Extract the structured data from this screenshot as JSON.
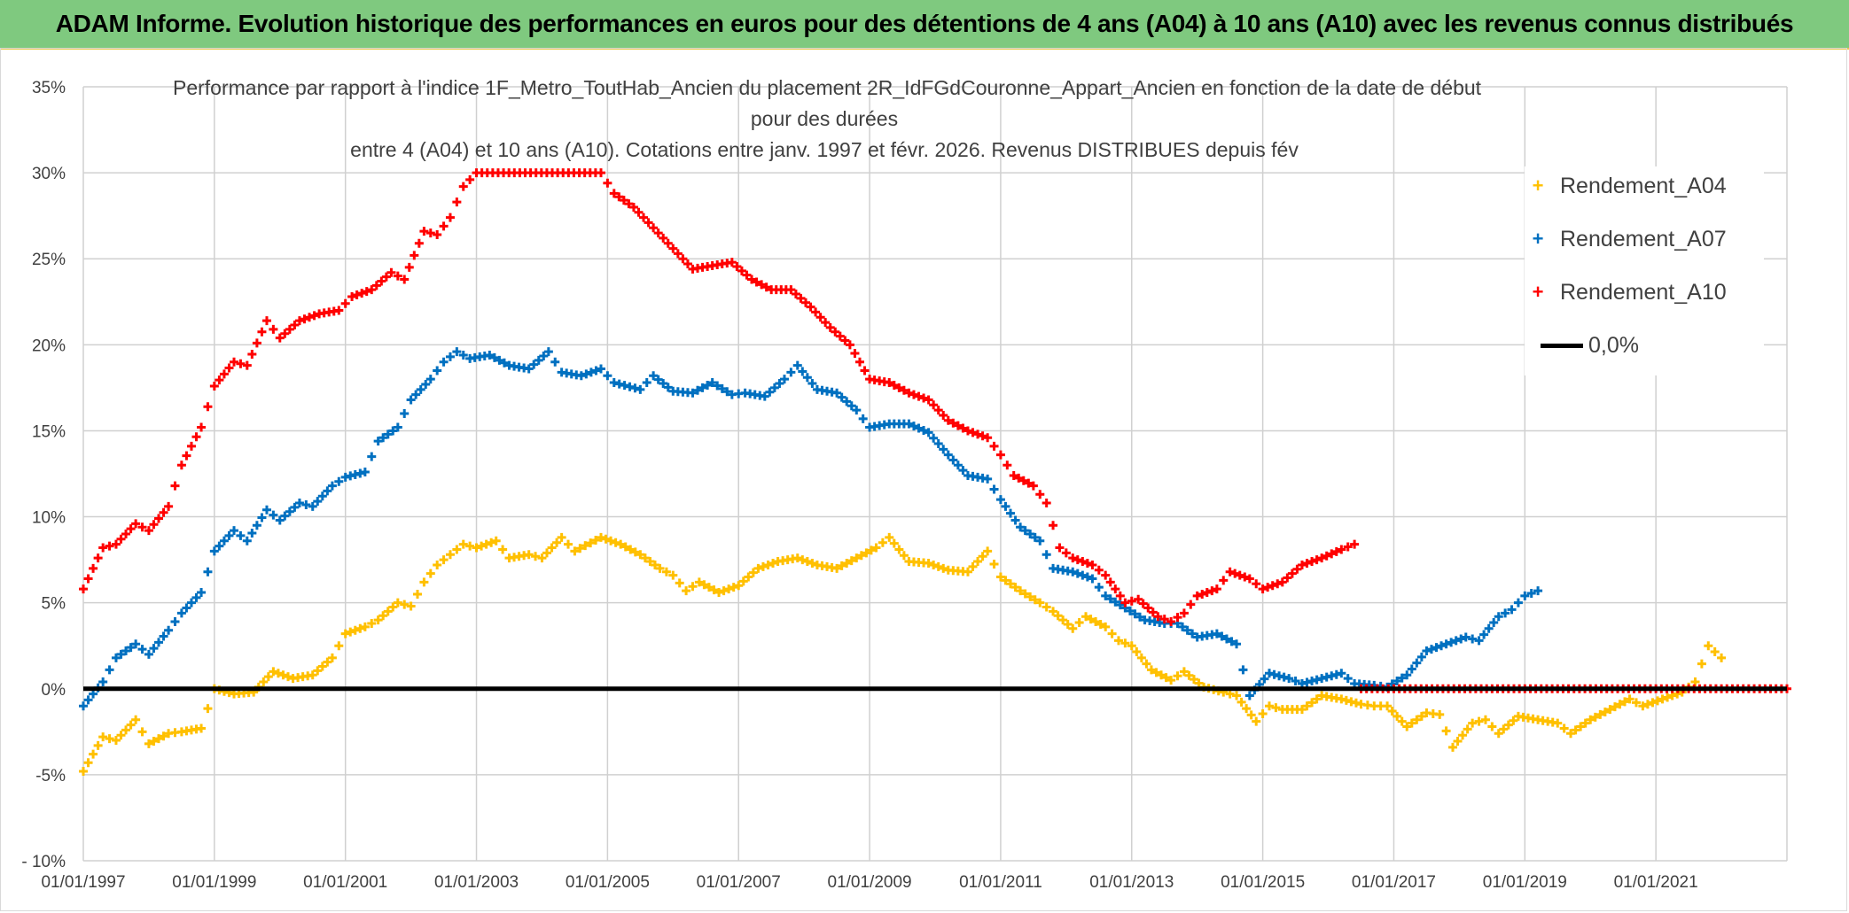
{
  "header": {
    "banner": "ADAM Informe. Evolution historique des performances en euros pour des détentions de 4 ans (A04) à 10 ans (A10) avec les revenus connus distribués"
  },
  "chart_data": {
    "type": "line",
    "title_lines": [
      "Performance par rapport à l'indice 1F_Metro_ToutHab_Ancien  du placement 2R_IdFGdCouronne_Appart_Ancien en fonction de la date de début",
      "pour des durées",
      "entre 4 (A04) et 10 ans (A10). Cotations entre janv. 1997 et févr. 2026. Revenus DISTRIBUES depuis fév"
    ],
    "xlabel": "",
    "ylabel": "",
    "x_ticks": [
      "01/01/1997",
      "01/01/1999",
      "01/01/2001",
      "01/01/2003",
      "01/01/2005",
      "01/01/2007",
      "01/01/2009",
      "01/01/2011",
      "01/01/2013",
      "01/01/2015",
      "01/01/2017",
      "01/01/2019",
      "01/01/2021"
    ],
    "y_ticks": [
      "35%",
      "30%",
      "25%",
      "20%",
      "15%",
      "10%",
      "5%",
      "0%",
      "-5%",
      "- 10%"
    ],
    "ylim": [
      -10,
      35
    ],
    "xlim": [
      1997.0,
      2023.0
    ],
    "clip_at_max": 30,
    "grid": "horizontal and vertical",
    "legend_position": "right",
    "series": [
      {
        "name": "Rendement_A04",
        "color": "#FFC000",
        "marker": "plus",
        "points": [
          [
            1997.0,
            -4.8
          ],
          [
            1997.3,
            -2.8
          ],
          [
            1997.5,
            -3.0
          ],
          [
            1997.8,
            -1.8
          ],
          [
            1998.0,
            -3.2
          ],
          [
            1998.3,
            -2.6
          ],
          [
            1998.5,
            -2.5
          ],
          [
            1998.8,
            -2.3
          ],
          [
            1999.0,
            0.0
          ],
          [
            1999.3,
            -0.3
          ],
          [
            1999.6,
            -0.2
          ],
          [
            1999.9,
            1.0
          ],
          [
            2000.2,
            0.6
          ],
          [
            2000.5,
            0.8
          ],
          [
            2000.8,
            1.8
          ],
          [
            2001.0,
            3.2
          ],
          [
            2001.3,
            3.6
          ],
          [
            2001.5,
            4.0
          ],
          [
            2001.8,
            5.0
          ],
          [
            2002.0,
            4.8
          ],
          [
            2002.2,
            6.2
          ],
          [
            2002.4,
            7.2
          ],
          [
            2002.6,
            7.8
          ],
          [
            2002.8,
            8.4
          ],
          [
            2003.0,
            8.2
          ],
          [
            2003.3,
            8.6
          ],
          [
            2003.5,
            7.6
          ],
          [
            2003.8,
            7.8
          ],
          [
            2004.0,
            7.6
          ],
          [
            2004.3,
            8.8
          ],
          [
            2004.5,
            8.0
          ],
          [
            2004.9,
            8.8
          ],
          [
            2005.2,
            8.4
          ],
          [
            2005.5,
            7.8
          ],
          [
            2005.8,
            7.0
          ],
          [
            2006.0,
            6.6
          ],
          [
            2006.2,
            5.7
          ],
          [
            2006.4,
            6.2
          ],
          [
            2006.7,
            5.6
          ],
          [
            2007.0,
            6.0
          ],
          [
            2007.3,
            7.0
          ],
          [
            2007.6,
            7.4
          ],
          [
            2007.9,
            7.6
          ],
          [
            2008.2,
            7.2
          ],
          [
            2008.5,
            7.0
          ],
          [
            2008.8,
            7.6
          ],
          [
            2009.1,
            8.2
          ],
          [
            2009.3,
            8.8
          ],
          [
            2009.6,
            7.4
          ],
          [
            2009.9,
            7.3
          ],
          [
            2010.2,
            6.9
          ],
          [
            2010.5,
            6.8
          ],
          [
            2010.8,
            8.0
          ],
          [
            2011.0,
            6.5
          ],
          [
            2011.3,
            5.7
          ],
          [
            2011.6,
            5.0
          ],
          [
            2011.8,
            4.5
          ],
          [
            2012.1,
            3.5
          ],
          [
            2012.3,
            4.2
          ],
          [
            2012.6,
            3.6
          ],
          [
            2012.8,
            2.8
          ],
          [
            2013.0,
            2.5
          ],
          [
            2013.3,
            1.1
          ],
          [
            2013.6,
            0.5
          ],
          [
            2013.8,
            1.0
          ],
          [
            2014.1,
            0.1
          ],
          [
            2014.4,
            -0.2
          ],
          [
            2014.6,
            -0.4
          ],
          [
            2014.9,
            -1.9
          ],
          [
            2015.1,
            -1.0
          ],
          [
            2015.3,
            -1.2
          ],
          [
            2015.6,
            -1.2
          ],
          [
            2015.9,
            -0.4
          ],
          [
            2016.2,
            -0.6
          ],
          [
            2016.5,
            -0.9
          ],
          [
            2016.7,
            -1.0
          ],
          [
            2016.9,
            -1.0
          ],
          [
            2017.2,
            -2.2
          ],
          [
            2017.5,
            -1.4
          ],
          [
            2017.7,
            -1.5
          ],
          [
            2017.9,
            -3.4
          ],
          [
            2018.2,
            -2.0
          ],
          [
            2018.4,
            -1.8
          ],
          [
            2018.6,
            -2.6
          ],
          [
            2018.9,
            -1.6
          ],
          [
            2019.2,
            -1.8
          ],
          [
            2019.5,
            -2.0
          ],
          [
            2019.7,
            -2.6
          ],
          [
            2020.0,
            -1.8
          ],
          [
            2020.3,
            -1.2
          ],
          [
            2020.6,
            -0.6
          ],
          [
            2020.8,
            -1.0
          ],
          [
            2021.1,
            -0.6
          ],
          [
            2021.4,
            -0.2
          ],
          [
            2021.6,
            0.4
          ],
          [
            2021.8,
            2.5
          ],
          [
            2022.0,
            1.8
          ]
        ]
      },
      {
        "name": "Rendement_A07",
        "color": "#0070C0",
        "marker": "plus",
        "points": [
          [
            1997.0,
            -1.0
          ],
          [
            1997.3,
            0.4
          ],
          [
            1997.5,
            1.8
          ],
          [
            1997.8,
            2.6
          ],
          [
            1998.0,
            2.0
          ],
          [
            1998.3,
            3.4
          ],
          [
            1998.5,
            4.4
          ],
          [
            1998.8,
            5.6
          ],
          [
            1999.0,
            8.0
          ],
          [
            1999.3,
            9.2
          ],
          [
            1999.5,
            8.6
          ],
          [
            1999.8,
            10.4
          ],
          [
            2000.0,
            9.8
          ],
          [
            2000.3,
            10.8
          ],
          [
            2000.5,
            10.6
          ],
          [
            2000.8,
            11.8
          ],
          [
            2001.0,
            12.3
          ],
          [
            2001.3,
            12.6
          ],
          [
            2001.5,
            14.4
          ],
          [
            2001.8,
            15.2
          ],
          [
            2002.0,
            16.8
          ],
          [
            2002.3,
            18.0
          ],
          [
            2002.5,
            19.0
          ],
          [
            2002.7,
            19.6
          ],
          [
            2002.9,
            19.2
          ],
          [
            2003.2,
            19.4
          ],
          [
            2003.5,
            18.8
          ],
          [
            2003.8,
            18.6
          ],
          [
            2004.1,
            19.6
          ],
          [
            2004.3,
            18.4
          ],
          [
            2004.6,
            18.2
          ],
          [
            2004.9,
            18.6
          ],
          [
            2005.1,
            17.8
          ],
          [
            2005.5,
            17.4
          ],
          [
            2005.7,
            18.2
          ],
          [
            2006.0,
            17.3
          ],
          [
            2006.3,
            17.2
          ],
          [
            2006.6,
            17.8
          ],
          [
            2006.9,
            17.1
          ],
          [
            2007.1,
            17.2
          ],
          [
            2007.4,
            17.0
          ],
          [
            2007.7,
            18.0
          ],
          [
            2007.9,
            18.8
          ],
          [
            2008.2,
            17.4
          ],
          [
            2008.5,
            17.2
          ],
          [
            2008.8,
            16.2
          ],
          [
            2009.0,
            15.2
          ],
          [
            2009.3,
            15.4
          ],
          [
            2009.6,
            15.4
          ],
          [
            2009.9,
            14.9
          ],
          [
            2010.2,
            13.6
          ],
          [
            2010.5,
            12.4
          ],
          [
            2010.8,
            12.2
          ],
          [
            2011.0,
            11.0
          ],
          [
            2011.3,
            9.4
          ],
          [
            2011.6,
            8.6
          ],
          [
            2011.8,
            7.0
          ],
          [
            2012.1,
            6.8
          ],
          [
            2012.4,
            6.4
          ],
          [
            2012.6,
            5.4
          ],
          [
            2012.9,
            4.7
          ],
          [
            2013.2,
            4.0
          ],
          [
            2013.5,
            3.8
          ],
          [
            2013.7,
            3.8
          ],
          [
            2014.0,
            3.0
          ],
          [
            2014.3,
            3.2
          ],
          [
            2014.6,
            2.6
          ],
          [
            2014.8,
            -0.4
          ],
          [
            2015.1,
            0.9
          ],
          [
            2015.4,
            0.6
          ],
          [
            2015.6,
            0.3
          ],
          [
            2015.9,
            0.6
          ],
          [
            2016.2,
            0.9
          ],
          [
            2016.4,
            0.3
          ],
          [
            2016.7,
            0.2
          ],
          [
            2016.9,
            0.1
          ],
          [
            2017.2,
            0.8
          ],
          [
            2017.5,
            2.2
          ],
          [
            2017.8,
            2.6
          ],
          [
            2018.1,
            3.0
          ],
          [
            2018.3,
            2.8
          ],
          [
            2018.6,
            4.2
          ],
          [
            2018.8,
            4.6
          ],
          [
            2019.0,
            5.4
          ],
          [
            2019.2,
            5.7
          ]
        ]
      },
      {
        "name": "Rendement_A10",
        "color": "#FF0000",
        "marker": "plus",
        "points": [
          [
            1997.0,
            5.8
          ],
          [
            1997.3,
            8.2
          ],
          [
            1997.5,
            8.4
          ],
          [
            1997.8,
            9.6
          ],
          [
            1998.0,
            9.2
          ],
          [
            1998.3,
            10.6
          ],
          [
            1998.5,
            13.0
          ],
          [
            1998.8,
            15.2
          ],
          [
            1999.0,
            17.6
          ],
          [
            1999.3,
            19.0
          ],
          [
            1999.5,
            18.8
          ],
          [
            1999.8,
            21.4
          ],
          [
            2000.0,
            20.4
          ],
          [
            2000.3,
            21.4
          ],
          [
            2000.6,
            21.8
          ],
          [
            2000.9,
            22.0
          ],
          [
            2001.1,
            22.8
          ],
          [
            2001.4,
            23.2
          ],
          [
            2001.7,
            24.2
          ],
          [
            2001.9,
            23.8
          ],
          [
            2002.2,
            26.6
          ],
          [
            2002.4,
            26.4
          ],
          [
            2002.6,
            27.4
          ],
          [
            2002.8,
            29.2
          ],
          [
            2003.0,
            30.0
          ],
          [
            2004.9,
            30.0
          ],
          [
            2005.1,
            28.8
          ],
          [
            2005.4,
            28.0
          ],
          [
            2005.7,
            26.8
          ],
          [
            2006.0,
            25.6
          ],
          [
            2006.3,
            24.4
          ],
          [
            2006.6,
            24.6
          ],
          [
            2006.9,
            24.8
          ],
          [
            2007.2,
            23.8
          ],
          [
            2007.5,
            23.2
          ],
          [
            2007.8,
            23.2
          ],
          [
            2008.1,
            22.2
          ],
          [
            2008.4,
            21.0
          ],
          [
            2008.7,
            20.0
          ],
          [
            2009.0,
            18.0
          ],
          [
            2009.3,
            17.8
          ],
          [
            2009.6,
            17.2
          ],
          [
            2009.9,
            16.8
          ],
          [
            2010.2,
            15.6
          ],
          [
            2010.5,
            15.0
          ],
          [
            2010.8,
            14.6
          ],
          [
            2011.0,
            13.6
          ],
          [
            2011.2,
            12.4
          ],
          [
            2011.5,
            11.8
          ],
          [
            2011.7,
            10.8
          ],
          [
            2011.9,
            8.2
          ],
          [
            2012.1,
            7.6
          ],
          [
            2012.4,
            7.2
          ],
          [
            2012.6,
            6.6
          ],
          [
            2012.9,
            5.0
          ],
          [
            2013.1,
            5.2
          ],
          [
            2013.4,
            4.2
          ],
          [
            2013.6,
            3.9
          ],
          [
            2013.8,
            4.4
          ],
          [
            2014.0,
            5.4
          ],
          [
            2014.3,
            5.8
          ],
          [
            2014.5,
            6.8
          ],
          [
            2014.8,
            6.4
          ],
          [
            2015.0,
            5.8
          ],
          [
            2015.3,
            6.2
          ],
          [
            2015.6,
            7.2
          ],
          [
            2015.9,
            7.6
          ],
          [
            2016.2,
            8.1
          ],
          [
            2016.4,
            8.4
          ],
          [
            2016.5,
            0.0
          ],
          [
            2023.0,
            0.0
          ]
        ]
      },
      {
        "name": "0,0%",
        "color": "#000000",
        "marker": "line",
        "points": [
          [
            1997.0,
            0.0
          ],
          [
            2023.0,
            0.0
          ]
        ]
      }
    ]
  }
}
